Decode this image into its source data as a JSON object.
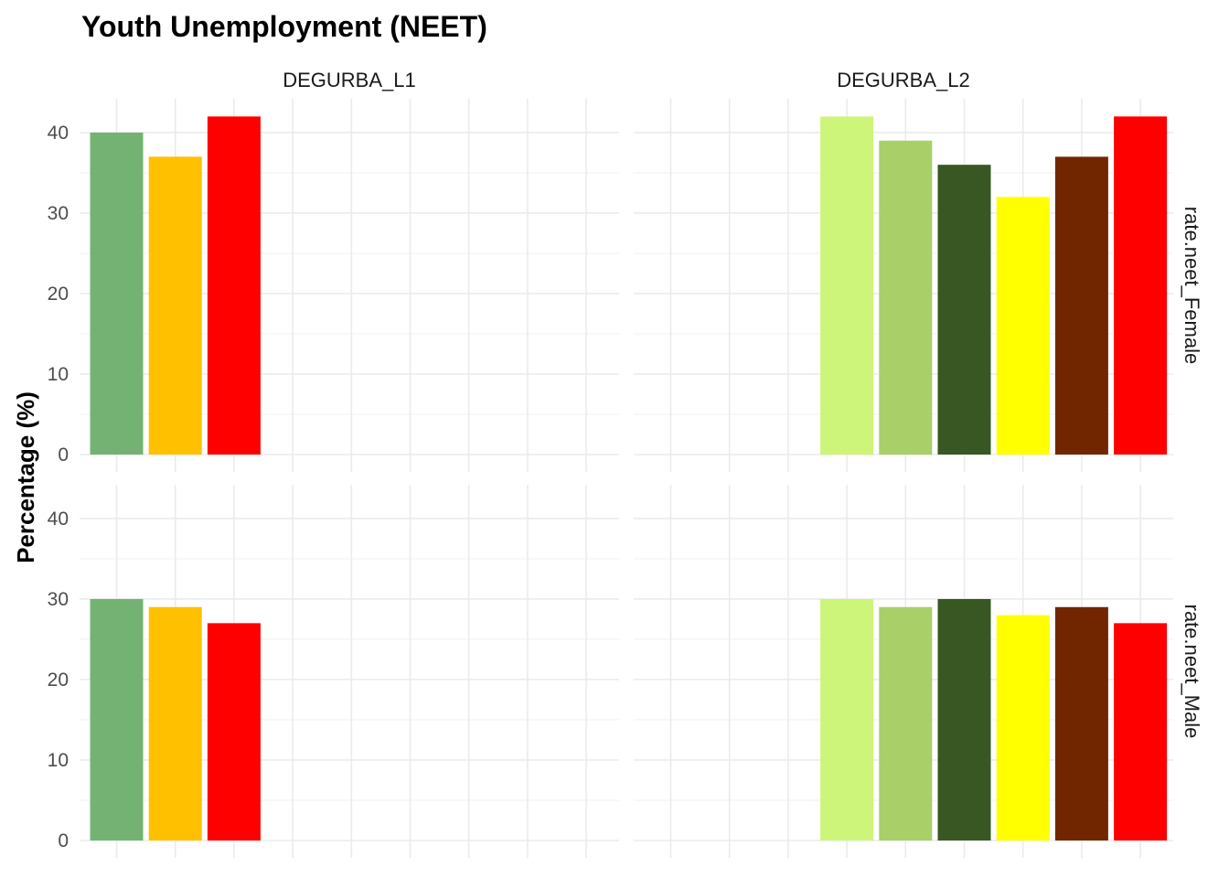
{
  "chart_data": {
    "type": "bar",
    "title": "Youth Unemployment (NEET)",
    "xlabel": "",
    "ylabel": "Percentage (%)",
    "ylim": [
      0,
      44
    ],
    "y_ticks": [
      0,
      10,
      20,
      30,
      40
    ],
    "grid": true,
    "legend": "none",
    "x_slots": 9,
    "columns": [
      "DEGURBA_L1",
      "DEGURBA_L2"
    ],
    "rows": [
      "rate.neet_Female",
      "rate.neet_Male"
    ],
    "panels": [
      {
        "column": "DEGURBA_L1",
        "row": "rate.neet_Female",
        "bars": [
          {
            "slot": 1,
            "value": 40,
            "color": "#74b274"
          },
          {
            "slot": 2,
            "value": 37,
            "color": "#ffc000"
          },
          {
            "slot": 3,
            "value": 42,
            "color": "#ff0000"
          }
        ]
      },
      {
        "column": "DEGURBA_L2",
        "row": "rate.neet_Female",
        "bars": [
          {
            "slot": 4,
            "value": 42,
            "color": "#cdf57a"
          },
          {
            "slot": 5,
            "value": 39,
            "color": "#a9cf69"
          },
          {
            "slot": 6,
            "value": 36,
            "color": "#385723"
          },
          {
            "slot": 7,
            "value": 32,
            "color": "#ffff00"
          },
          {
            "slot": 8,
            "value": 37,
            "color": "#722600"
          },
          {
            "slot": 9,
            "value": 42,
            "color": "#ff0000"
          }
        ]
      },
      {
        "column": "DEGURBA_L1",
        "row": "rate.neet_Male",
        "bars": [
          {
            "slot": 1,
            "value": 30,
            "color": "#74b274"
          },
          {
            "slot": 2,
            "value": 29,
            "color": "#ffc000"
          },
          {
            "slot": 3,
            "value": 27,
            "color": "#ff0000"
          }
        ]
      },
      {
        "column": "DEGURBA_L2",
        "row": "rate.neet_Male",
        "bars": [
          {
            "slot": 4,
            "value": 30,
            "color": "#cdf57a"
          },
          {
            "slot": 5,
            "value": 29,
            "color": "#a9cf69"
          },
          {
            "slot": 6,
            "value": 30,
            "color": "#385723"
          },
          {
            "slot": 7,
            "value": 28,
            "color": "#ffff00"
          },
          {
            "slot": 8,
            "value": 29,
            "color": "#722600"
          },
          {
            "slot": 9,
            "value": 27,
            "color": "#ff0000"
          }
        ]
      }
    ]
  }
}
